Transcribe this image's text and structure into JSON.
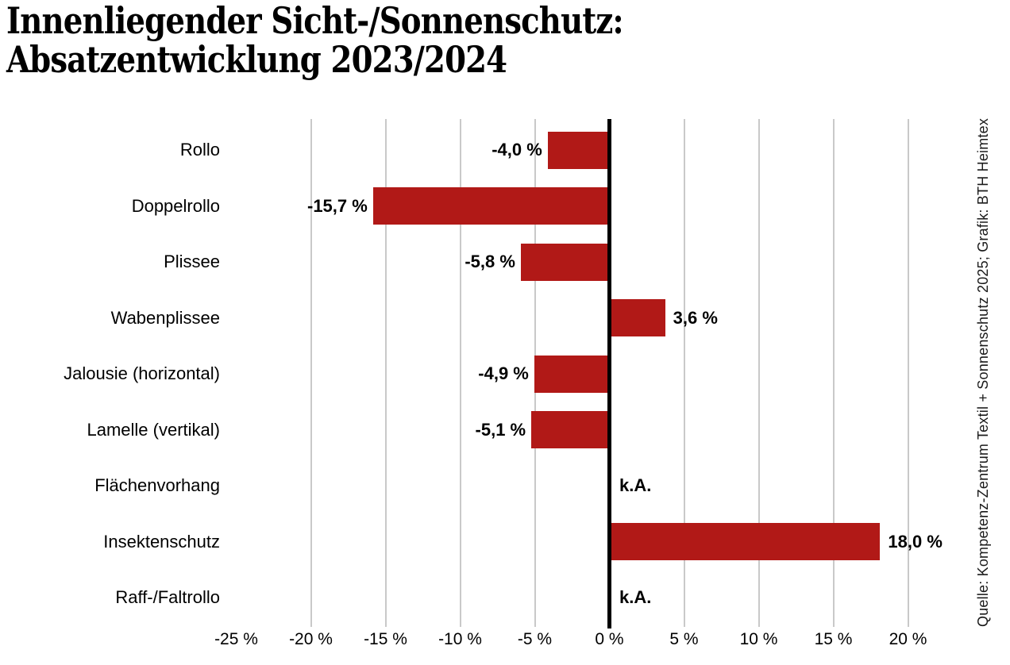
{
  "title": {
    "line1": "Innenliegender Sicht-/Sonnenschutz:",
    "line2": "Absatzentwicklung 2023/2024"
  },
  "source_note": "Quelle: Kompetenz-Zentrum Textil + Sonnenschutz 2025; Grafik: BTH Heimtex",
  "colors": {
    "bar": "#b11917",
    "zero_axis": "#000000",
    "gridline": "#c9c9c9",
    "text": "#000000"
  },
  "chart_data": {
    "type": "bar",
    "orientation": "horizontal",
    "title": "Innenliegender Sicht-/Sonnenschutz: Absatzentwicklung 2023/2024",
    "xlabel": "",
    "ylabel": "",
    "unit": "%",
    "xlim": [
      -25,
      20
    ],
    "grid": "vertical-gridlines-every-5",
    "legend": "none",
    "categories": [
      "Rollo",
      "Doppelrollo",
      "Plissee",
      "Wabenplissee",
      "Jalousie (horizontal)",
      "Lamelle (vertikal)",
      "Flächenvorhang",
      "Insektenschutz",
      "Raff-/Faltrollo"
    ],
    "values": [
      -4.0,
      -15.7,
      -5.8,
      3.6,
      -4.9,
      -5.1,
      null,
      18.0,
      null
    ],
    "value_labels": [
      "-4,0 %",
      "-15,7 %",
      "-5,8 %",
      "3,6 %",
      "-4,9 %",
      "-5,1 %",
      "k.A.",
      "18,0 %",
      "k.A."
    ],
    "ticks": [
      {
        "value": -25,
        "label": "-25 %",
        "gridline": false
      },
      {
        "value": -20,
        "label": "-20 %",
        "gridline": true
      },
      {
        "value": -15,
        "label": "-15 %",
        "gridline": true
      },
      {
        "value": -10,
        "label": "-10 %",
        "gridline": true
      },
      {
        "value": -5,
        "label": "-5 %",
        "gridline": true
      },
      {
        "value": 0,
        "label": "0 %",
        "gridline": false
      },
      {
        "value": 5,
        "label": "5 %",
        "gridline": true
      },
      {
        "value": 10,
        "label": "10 %",
        "gridline": true
      },
      {
        "value": 15,
        "label": "15 %",
        "gridline": true
      },
      {
        "value": 20,
        "label": "20 %",
        "gridline": true
      }
    ]
  }
}
